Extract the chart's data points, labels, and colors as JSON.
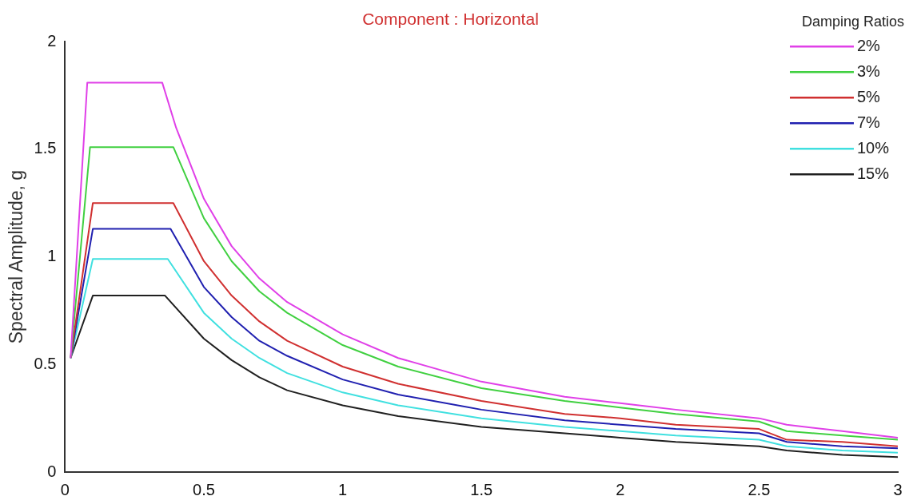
{
  "chart_data": {
    "type": "line",
    "title": "Component : Horizontal",
    "ylabel": "Spectral Amplitude, g",
    "legend_title": "Damping Ratios",
    "legend": "top right",
    "grid": false,
    "marker": "none",
    "line_style": "solid",
    "xlim": [
      0,
      3
    ],
    "xticks": [
      0,
      0.5,
      1,
      1.5,
      2,
      2.5,
      3
    ],
    "ylim": [
      0,
      2
    ],
    "yticks": [
      0,
      0.5,
      1,
      1.5,
      2
    ],
    "series": [
      {
        "name": "2%",
        "color": "#e040e8",
        "x": [
          0.02,
          0.08,
          0.35,
          0.4,
          0.5,
          0.6,
          0.7,
          0.8,
          1.0,
          1.2,
          1.5,
          1.8,
          2.0,
          2.2,
          2.5,
          2.6,
          2.8,
          3.0
        ],
        "values": [
          0.53,
          1.81,
          1.81,
          1.6,
          1.27,
          1.05,
          0.9,
          0.79,
          0.64,
          0.53,
          0.42,
          0.35,
          0.32,
          0.29,
          0.25,
          0.22,
          0.19,
          0.16
        ]
      },
      {
        "name": "3%",
        "color": "#40d040",
        "x": [
          0.02,
          0.09,
          0.39,
          0.5,
          0.6,
          0.7,
          0.8,
          1.0,
          1.2,
          1.5,
          1.8,
          2.0,
          2.2,
          2.5,
          2.6,
          2.8,
          3.0
        ],
        "values": [
          0.53,
          1.51,
          1.51,
          1.18,
          0.98,
          0.84,
          0.74,
          0.59,
          0.49,
          0.39,
          0.33,
          0.3,
          0.27,
          0.235,
          0.19,
          0.17,
          0.15
        ]
      },
      {
        "name": "5%",
        "color": "#d03030",
        "x": [
          0.02,
          0.1,
          0.39,
          0.5,
          0.6,
          0.7,
          0.8,
          1.0,
          1.2,
          1.5,
          1.8,
          2.0,
          2.2,
          2.5,
          2.6,
          2.8,
          3.0
        ],
        "values": [
          0.53,
          1.25,
          1.25,
          0.98,
          0.82,
          0.7,
          0.61,
          0.49,
          0.41,
          0.33,
          0.27,
          0.25,
          0.22,
          0.2,
          0.15,
          0.14,
          0.12
        ]
      },
      {
        "name": "7%",
        "color": "#2020b0",
        "x": [
          0.02,
          0.1,
          0.38,
          0.5,
          0.6,
          0.7,
          0.8,
          1.0,
          1.2,
          1.5,
          1.8,
          2.0,
          2.2,
          2.5,
          2.6,
          2.8,
          3.0
        ],
        "values": [
          0.53,
          1.13,
          1.13,
          0.86,
          0.72,
          0.61,
          0.54,
          0.43,
          0.36,
          0.29,
          0.24,
          0.22,
          0.2,
          0.18,
          0.14,
          0.12,
          0.11
        ]
      },
      {
        "name": "10%",
        "color": "#40e0e0",
        "x": [
          0.02,
          0.1,
          0.37,
          0.5,
          0.6,
          0.7,
          0.8,
          1.0,
          1.2,
          1.5,
          1.8,
          2.0,
          2.2,
          2.5,
          2.6,
          2.8,
          3.0
        ],
        "values": [
          0.53,
          0.99,
          0.99,
          0.74,
          0.62,
          0.53,
          0.46,
          0.37,
          0.31,
          0.25,
          0.21,
          0.19,
          0.17,
          0.15,
          0.12,
          0.1,
          0.09
        ]
      },
      {
        "name": "15%",
        "color": "#202020",
        "x": [
          0.02,
          0.1,
          0.36,
          0.5,
          0.6,
          0.7,
          0.8,
          1.0,
          1.2,
          1.5,
          1.8,
          2.0,
          2.2,
          2.5,
          2.6,
          2.8,
          3.0
        ],
        "values": [
          0.53,
          0.82,
          0.82,
          0.62,
          0.52,
          0.44,
          0.38,
          0.31,
          0.26,
          0.21,
          0.18,
          0.16,
          0.14,
          0.12,
          0.1,
          0.08,
          0.07
        ]
      }
    ]
  }
}
